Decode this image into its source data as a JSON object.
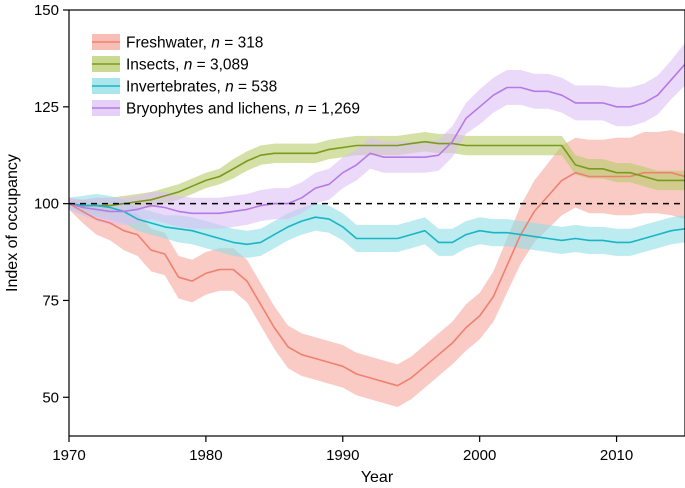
{
  "chart_data": {
    "type": "line",
    "title": "",
    "xlabel": "Year",
    "ylabel": "Index of occupancy",
    "xlim": [
      1970,
      2015
    ],
    "ylim": [
      40,
      150
    ],
    "xticks": [
      1970,
      1980,
      1990,
      2000,
      2010
    ],
    "yticks": [
      50,
      75,
      100,
      125,
      150
    ],
    "reference_line": 100,
    "legend_position": "top-left",
    "x": [
      1970,
      1971,
      1972,
      1973,
      1974,
      1975,
      1976,
      1977,
      1978,
      1979,
      1980,
      1981,
      1982,
      1983,
      1984,
      1985,
      1986,
      1987,
      1988,
      1989,
      1990,
      1991,
      1992,
      1993,
      1994,
      1995,
      1996,
      1997,
      1998,
      1999,
      2000,
      2001,
      2002,
      2003,
      2004,
      2005,
      2006,
      2007,
      2008,
      2009,
      2010,
      2011,
      2012,
      2013,
      2014,
      2015
    ],
    "series": [
      {
        "name": "Freshwater",
        "n": "318",
        "color": "#f08070",
        "band_color": "#f5a89c",
        "values": [
          100,
          98,
          96,
          95,
          93,
          92,
          88,
          87,
          81,
          80,
          82,
          83,
          83,
          80,
          74,
          68,
          63,
          61,
          60,
          59,
          58,
          56,
          55,
          54,
          53,
          55,
          58,
          61,
          64,
          68,
          71,
          76,
          84,
          92,
          98,
          102,
          106,
          108,
          107,
          107,
          107,
          107,
          108,
          108,
          108,
          107
        ],
        "band_width": [
          1.5,
          3,
          4,
          4.5,
          5,
          5.5,
          5.5,
          5.5,
          5.5,
          5.5,
          5.5,
          5.5,
          5.5,
          5.5,
          5.5,
          5.5,
          5.5,
          5.5,
          5.5,
          5.5,
          5.5,
          5.5,
          5.5,
          5.5,
          5.5,
          5.5,
          5.5,
          5.5,
          5.5,
          6,
          6,
          6.5,
          7,
          7.5,
          8,
          8.5,
          9,
          9,
          9.5,
          9.5,
          10,
          10,
          10.5,
          10.5,
          11,
          11
        ]
      },
      {
        "name": "Insects",
        "n": "3,089",
        "color": "#7a9a1e",
        "band_color": "#b7cc6a",
        "values": [
          100,
          99.5,
          99.5,
          99.5,
          100,
          100.5,
          101,
          102,
          103,
          104.5,
          106,
          107,
          109,
          111,
          112.5,
          113,
          113,
          113,
          113,
          114,
          114.5,
          115,
          115,
          115,
          115,
          115.5,
          116,
          115.5,
          115.5,
          115,
          115,
          115,
          115,
          115,
          115,
          115,
          115,
          110,
          109,
          109,
          108,
          108,
          107,
          106,
          106,
          106
        ],
        "band_width": [
          1,
          1.5,
          2,
          2,
          2,
          2,
          2,
          2,
          2,
          2,
          2,
          2,
          2.5,
          2.5,
          2.5,
          2.5,
          2.5,
          2.5,
          2.5,
          2.5,
          2.5,
          2.5,
          2.5,
          2.5,
          2.5,
          2.5,
          2.5,
          2.5,
          2.5,
          2.5,
          2.5,
          2.5,
          2.5,
          2.5,
          2.5,
          2.5,
          2.5,
          2.5,
          2.5,
          2.5,
          2.5,
          2.5,
          2.5,
          2.5,
          2.5,
          2.5
        ]
      },
      {
        "name": "Invertebrates",
        "n": "538",
        "color": "#1ab5c5",
        "band_color": "#8fdde6",
        "values": [
          100,
          99.5,
          99.5,
          99,
          98,
          96,
          95,
          94,
          93.5,
          93,
          92,
          91,
          90,
          89.5,
          90,
          92,
          94,
          95.5,
          96.5,
          96,
          94,
          91,
          91,
          91,
          91,
          92,
          93,
          90,
          90,
          92,
          93,
          92.5,
          92.5,
          92,
          91.5,
          91,
          90.5,
          91,
          90.5,
          90.5,
          90,
          90,
          91,
          92,
          93,
          93.5
        ],
        "band_width": [
          1.5,
          2.5,
          3,
          3,
          3,
          3,
          3,
          3,
          3.5,
          3.5,
          3.5,
          3.5,
          3.5,
          3.5,
          3.5,
          3.5,
          3.5,
          3.5,
          3.5,
          3.5,
          3.5,
          3.5,
          3.5,
          3.5,
          3.5,
          3.5,
          3.5,
          3.5,
          3.5,
          3.5,
          3.5,
          3.5,
          3.5,
          3.5,
          3.5,
          3.5,
          3.5,
          3.5,
          3.5,
          3.5,
          3.5,
          3.5,
          3.5,
          3.5,
          3.5,
          3.5
        ]
      },
      {
        "name": "Bryophytes and lichens",
        "n": "1,269",
        "color": "#b57ae6",
        "band_color": "#dcc0f5",
        "values": [
          100,
          99,
          98.5,
          98,
          98,
          98.5,
          99.5,
          99,
          98,
          97.5,
          97.5,
          97.5,
          98,
          98.5,
          99.5,
          100,
          100,
          101.5,
          104,
          105,
          108,
          110,
          113,
          112,
          112,
          112,
          112,
          112.5,
          116,
          122,
          125,
          128,
          130,
          130,
          129,
          129,
          128,
          126,
          126,
          126,
          125,
          125,
          126,
          128,
          132,
          136
        ],
        "band_width": [
          1.5,
          2,
          3,
          3.5,
          3.5,
          3.5,
          3.5,
          4,
          4,
          4,
          4,
          4,
          4,
          4,
          4,
          4,
          4,
          4,
          4,
          4,
          4,
          4,
          4,
          4,
          4,
          4,
          4,
          4,
          4,
          4,
          4.5,
          4.5,
          4.5,
          4.5,
          4.5,
          4.5,
          4.5,
          4.5,
          4.5,
          4.5,
          5,
          5,
          5,
          5,
          5,
          5.5
        ]
      }
    ]
  }
}
